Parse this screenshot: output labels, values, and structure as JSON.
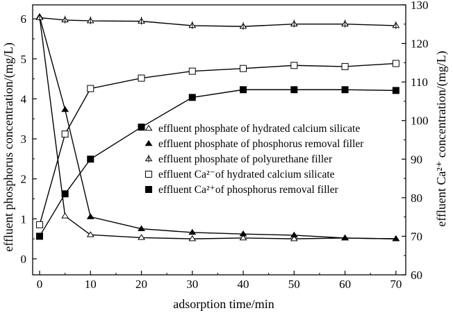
{
  "chart_data": {
    "type": "line",
    "xlabel": "adsorption time/min",
    "ylabel_left": "effluent phosphorus concentration/(mg/L)",
    "ylabel_right": "effluent Ca²⁺ concentration/(mg/L)",
    "x_ticks": [
      "0",
      "10",
      "20",
      "30",
      "40",
      "50",
      "60",
      "70"
    ],
    "y_left_ticks": [
      "0",
      "1",
      "2",
      "3",
      "4",
      "5",
      "6"
    ],
    "y_right_ticks": [
      "60",
      "70",
      "80",
      "90",
      "100",
      "110",
      "120",
      "130"
    ],
    "xlim": [
      0,
      70
    ],
    "ylim_left": [
      -0.4,
      6.35
    ],
    "ylim_right": [
      60,
      130
    ],
    "grid": false,
    "legend_position": "center-right",
    "series": [
      {
        "name": "effluent phosphate of hydrated calcium silicate",
        "axis": "left",
        "marker": "open-triangle",
        "x": [
          0,
          5,
          10,
          20,
          30,
          40,
          50,
          60,
          70
        ],
        "y": [
          6.05,
          1.07,
          0.6,
          0.53,
          0.5,
          0.52,
          0.5,
          0.52,
          0.5
        ]
      },
      {
        "name": "effluent phosphate of phosphorus removal filler",
        "axis": "left",
        "marker": "filled-triangle",
        "x": [
          0,
          5,
          10,
          20,
          30,
          40,
          50,
          60,
          70
        ],
        "y": [
          6.05,
          3.73,
          1.05,
          0.75,
          0.66,
          0.62,
          0.59,
          0.52,
          0.5
        ]
      },
      {
        "name": "effluent phosphate of polyurethane filler",
        "axis": "left",
        "marker": "cross-triangle",
        "x": [
          0,
          5,
          10,
          20,
          30,
          40,
          50,
          60,
          70
        ],
        "y": [
          6.03,
          5.97,
          5.95,
          5.94,
          5.83,
          5.81,
          5.87,
          5.87,
          5.83
        ]
      },
      {
        "name": "effluent Ca²⁻of hydrated calcium silicate",
        "axis": "right",
        "marker": "open-square",
        "x": [
          0,
          5,
          10,
          20,
          30,
          40,
          50,
          60,
          70
        ],
        "y": [
          73,
          96.5,
          108.3,
          111,
          112.8,
          113.5,
          114.3,
          114,
          114.8
        ]
      },
      {
        "name": "effluent Ca²⁺of phosphorus removal filler",
        "axis": "right",
        "marker": "filled-square",
        "x": [
          0,
          5,
          10,
          20,
          30,
          40,
          50,
          60,
          70
        ],
        "y": [
          70,
          81,
          90,
          98.3,
          106,
          108,
          108,
          108,
          107.8
        ]
      }
    ]
  }
}
